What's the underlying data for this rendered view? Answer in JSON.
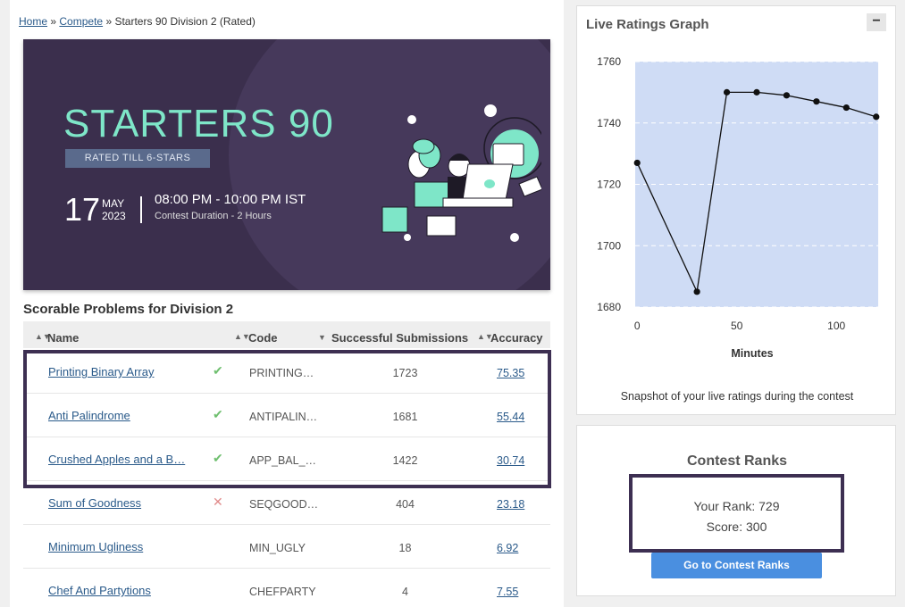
{
  "breadcrumb": {
    "home": "Home",
    "sep1": "»",
    "compete": "Compete",
    "sep2": "»",
    "current": "Starters 90 Division 2 (Rated)"
  },
  "banner": {
    "title": "STARTERS 90",
    "rated": "RATED TILL 6-STARS",
    "day": "17",
    "month": "MAY",
    "year": "2023",
    "time": "08:00 PM - 10:00 PM IST",
    "duration": "Contest Duration - 2 Hours"
  },
  "problems": {
    "title": "Scorable Problems for Division 2",
    "headers": {
      "name": "Name",
      "code": "Code",
      "submissions": "Successful Submissions",
      "accuracy": "Accuracy"
    },
    "sort_icon": "sort-icon",
    "rows": [
      {
        "name": "Printing Binary Array",
        "status": "✔",
        "status_type": "ok",
        "code": "PRINTING…",
        "subs": "1723",
        "acc": "75.35"
      },
      {
        "name": "Anti Palindrome",
        "status": "✔",
        "status_type": "ok",
        "code": "ANTIPALIN…",
        "subs": "1681",
        "acc": "55.44"
      },
      {
        "name": "Crushed Apples and a B…",
        "status": "✔",
        "status_type": "ok",
        "code": "APP_BAL_…",
        "subs": "1422",
        "acc": "30.74"
      },
      {
        "name": "Sum of Goodness",
        "status": "✕",
        "status_type": "bad",
        "code": "SEQGOOD…",
        "subs": "404",
        "acc": "23.18"
      },
      {
        "name": "Minimum Ugliness",
        "status": "",
        "status_type": "none",
        "code": "MIN_UGLY",
        "subs": "18",
        "acc": "6.92"
      },
      {
        "name": "Chef And Partytions",
        "status": "",
        "status_type": "none",
        "code": "CHEFPARTY",
        "subs": "4",
        "acc": "7.55"
      }
    ]
  },
  "graph": {
    "title": "Live Ratings Graph",
    "minimize": "−",
    "caption": "Snapshot of your live ratings during the contest",
    "accent": "#cfdcf5"
  },
  "chart_data": {
    "type": "line",
    "title": "",
    "xlabel": "Minutes",
    "ylabel": "",
    "x": [
      0,
      30,
      45,
      60,
      75,
      90,
      105,
      120
    ],
    "y": [
      1727,
      1685,
      1750,
      1750,
      1749,
      1747,
      1745,
      1742
    ],
    "xticks": [
      "0",
      "50",
      "100"
    ],
    "yticks": [
      "1680",
      "1700",
      "1720",
      "1740",
      "1760"
    ],
    "xlim": [
      -1,
      121
    ],
    "ylim": [
      1680,
      1760
    ],
    "grid": true
  },
  "ranks": {
    "title": "Contest Ranks",
    "your_rank": "Your Rank: 729",
    "score": "Score: 300",
    "button": "Go to Contest Ranks"
  }
}
